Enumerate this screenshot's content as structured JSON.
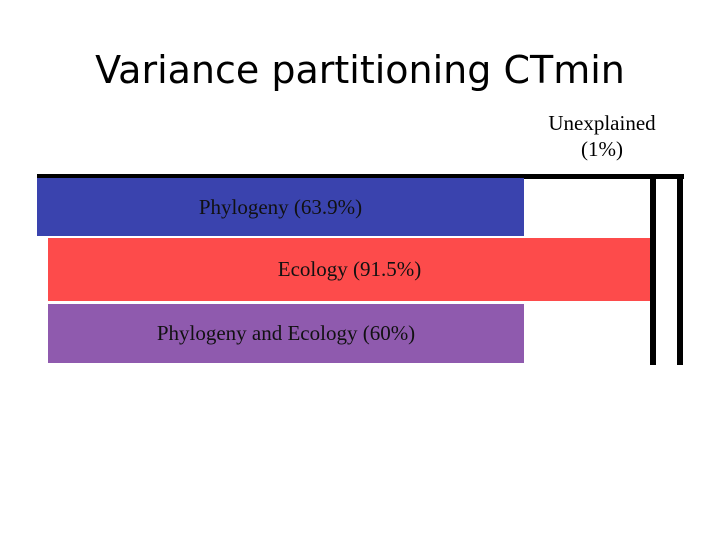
{
  "slide": {
    "title": "Variance partitioning CTmin",
    "unexplained_line1": "Unexplained",
    "unexplained_line2": "(1%)"
  },
  "bars": [
    {
      "label": "Phylogeny (63.9%)",
      "color": "#3a43ae"
    },
    {
      "label": "Ecology (91.5%)",
      "color": "#fd4b4b"
    },
    {
      "label": "Phylogeny and Ecology (60%)",
      "color": "#8f5aae"
    }
  ]
}
